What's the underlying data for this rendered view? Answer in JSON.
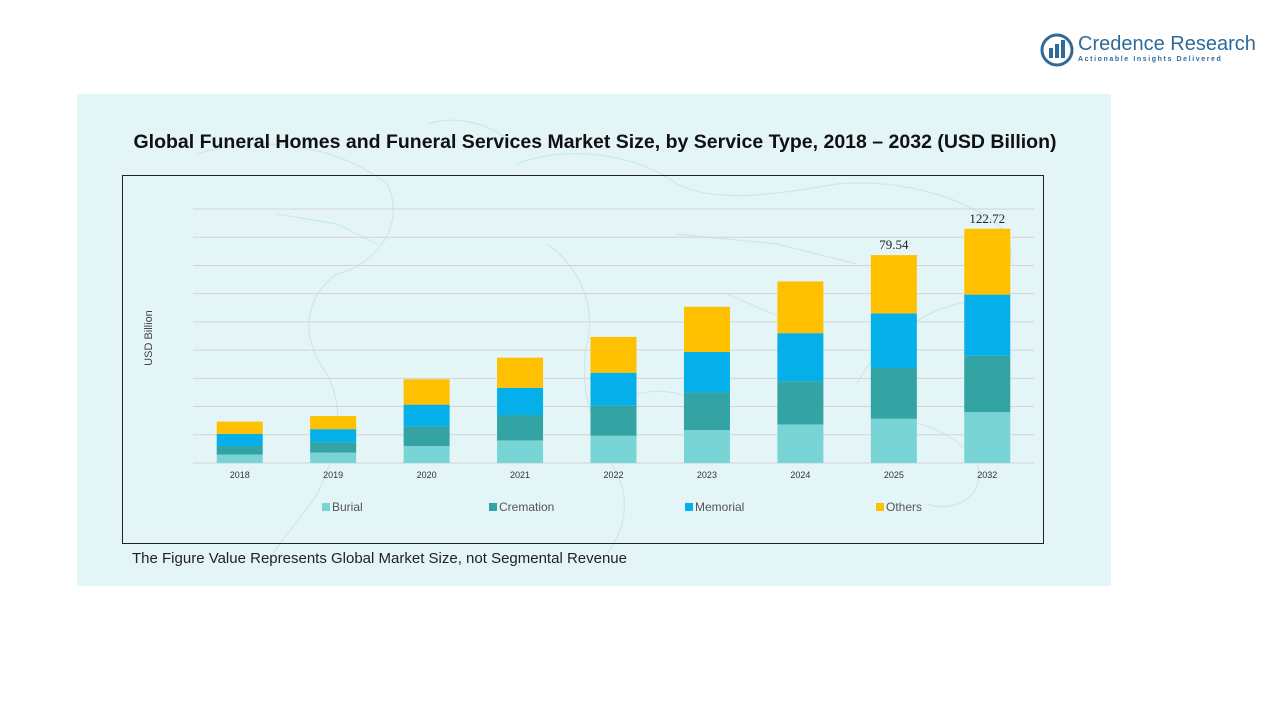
{
  "brand": {
    "name": "Credence Research",
    "tagline": "Actionable Insights Delivered",
    "color": "#2f6b9a"
  },
  "note": "The Figure Value Represents Global Market Size, not Segmental Revenue",
  "chart_data": {
    "type": "bar",
    "stacked": true,
    "title": "Global Funeral Homes and Funeral Services Market Size, by Service Type, 2018 – 2032 (USD Billion)",
    "xlabel": "",
    "ylabel": "USD Billion",
    "ylim": [
      0,
      135
    ],
    "grid": true,
    "legend_position": "bottom",
    "categories": [
      "2018",
      "2019",
      "2020",
      "2021",
      "2022",
      "2023",
      "2024",
      "2025",
      "2032"
    ],
    "series": [
      {
        "name": "Burial",
        "color": "#79d4d6",
        "values": [
          4.5,
          5.5,
          9.0,
          12.0,
          14.5,
          17.5,
          20.5,
          23.5,
          27.0
        ]
      },
      {
        "name": "Cremation",
        "color": "#33a3a3",
        "values": [
          4.5,
          5.5,
          10.5,
          13.5,
          16.0,
          20.0,
          23.0,
          27.0,
          30.0
        ]
      },
      {
        "name": "Memorial",
        "color": "#05b0ea",
        "values": [
          6.5,
          7.0,
          11.5,
          14.5,
          17.5,
          21.5,
          25.5,
          29.0,
          32.5
        ]
      },
      {
        "name": "Others",
        "color": "#ffc000",
        "values": [
          6.5,
          7.0,
          13.5,
          16.0,
          19.0,
          24.0,
          27.5,
          31.0,
          35.0
        ]
      }
    ],
    "totals_labels": [
      {
        "category": "2025",
        "text": "79.54"
      },
      {
        "category": "2032",
        "text": "122.72"
      }
    ]
  }
}
